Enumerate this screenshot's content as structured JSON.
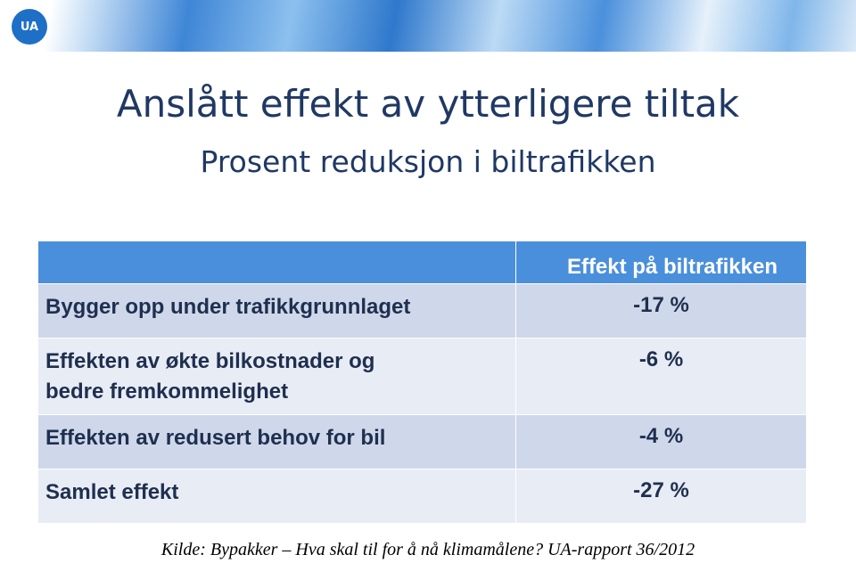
{
  "header": {
    "logo": "UA"
  },
  "title": "Anslått effekt av ytterligere tiltak",
  "subtitle": "Prosent reduksjon i biltrafikken",
  "table": {
    "columns": [
      "",
      "Effekt på biltrafikken"
    ],
    "rows": [
      [
        [
          "Bygger opp under trafikkgrunnlaget"
        ],
        "-17 %"
      ],
      [
        [
          "Effekten av økte bilkostnader og",
          "bedre fremkommelighet"
        ],
        "-6 %"
      ],
      [
        [
          "Effekten av redusert behov for bil"
        ],
        "-4 %"
      ],
      [
        [
          "Samlet effekt"
        ],
        "-27 %"
      ]
    ]
  },
  "source": "Kilde: Bypakker – Hva skal til for å nå klimamålene? UA-rapport 36/2012"
}
